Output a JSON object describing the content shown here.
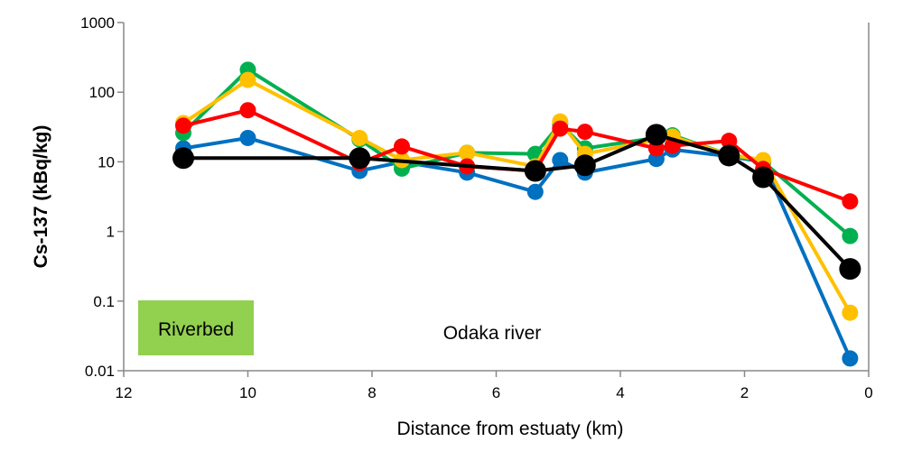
{
  "chart_data": {
    "type": "line",
    "xlabel": "Distance from estuaty (km)",
    "ylabel": "Cs-137 (kBq/kg)",
    "xlim": [
      12,
      0
    ],
    "x_reversed": true,
    "ylim": [
      0.01,
      1000
    ],
    "y_scale": "log",
    "x_ticks": [
      "12",
      "10",
      "8",
      "6",
      "4",
      "2",
      "0"
    ],
    "y_ticks": [
      "0.01",
      "0.1",
      "1",
      "10",
      "100",
      "1000"
    ],
    "grid": false,
    "annotations": [
      "Riverbed",
      "Odaka river"
    ],
    "series": [
      {
        "color": "#0070c0",
        "x": [
          11.04,
          10.0,
          8.2,
          7.52,
          6.47,
          5.37,
          4.97,
          4.57,
          3.42,
          3.16,
          2.25,
          1.7,
          0.3
        ],
        "values": [
          15.6,
          22,
          7.4,
          10,
          7,
          3.7,
          10.6,
          7,
          11,
          15,
          12,
          10,
          0.015
        ]
      },
      {
        "color": "#00b050",
        "x": [
          11.04,
          10.0,
          8.2,
          7.52,
          6.47,
          5.37,
          4.97,
          4.57,
          3.16,
          2.25,
          1.7,
          0.3
        ],
        "values": [
          26,
          210,
          21,
          8,
          13.5,
          13,
          35,
          15.6,
          24,
          12.7,
          10,
          0.86
        ]
      },
      {
        "color": "#ffc000",
        "x": [
          11.04,
          10.0,
          8.2,
          7.52,
          6.47,
          5.37,
          4.97,
          4.57,
          3.16,
          2.25,
          1.7,
          0.3
        ],
        "values": [
          36,
          150,
          22,
          10.6,
          13.5,
          8.6,
          38,
          13,
          23,
          12.7,
          10.6,
          0.068
        ]
      },
      {
        "color": "#ff0000",
        "x": [
          11.04,
          10.0,
          8.2,
          7.52,
          6.47,
          5.37,
          4.97,
          4.57,
          3.42,
          3.16,
          2.25,
          1.7,
          0.3
        ],
        "values": [
          33,
          55,
          9.6,
          16.6,
          8.6,
          7.4,
          30,
          27,
          15.6,
          17,
          20,
          7.9,
          2.7
        ]
      },
      {
        "color": "#000000",
        "x": [
          11.04,
          8.2,
          5.37,
          4.57,
          3.42,
          2.25,
          1.7,
          0.3
        ],
        "values": [
          11.3,
          11.3,
          7.4,
          8.9,
          24.5,
          12.3,
          6,
          0.29
        ]
      }
    ]
  },
  "riverbed_color": "#92d050"
}
